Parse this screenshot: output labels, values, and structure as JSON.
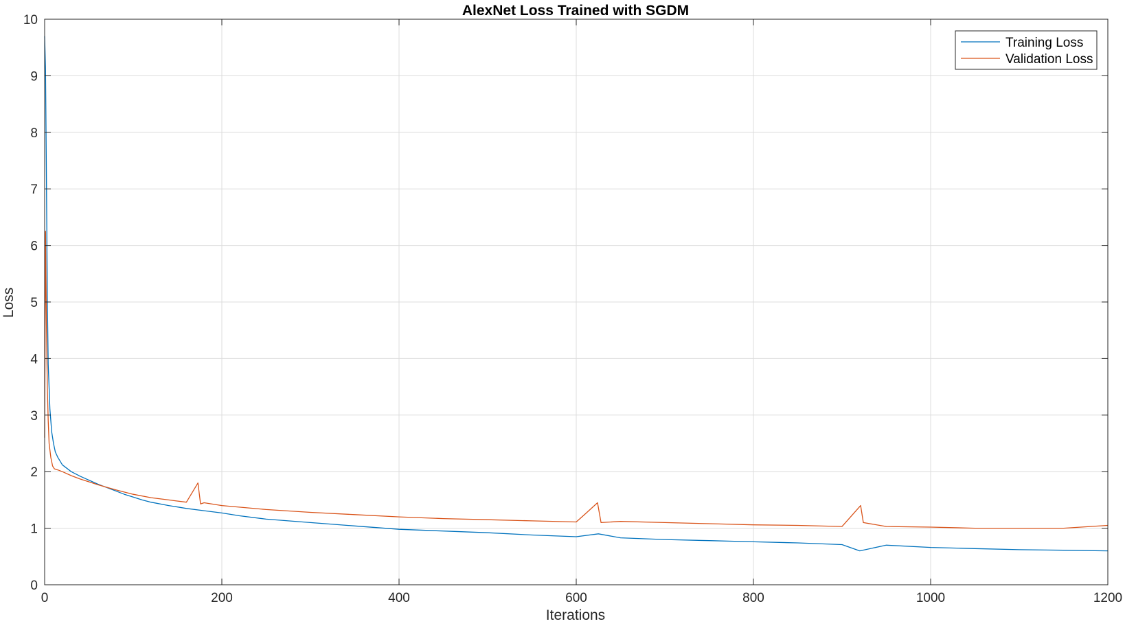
{
  "chart_data": {
    "type": "line",
    "title": "AlexNet Loss Trained with SGDM",
    "xlabel": "Iterations",
    "ylabel": "Loss",
    "xlim": [
      0,
      1200
    ],
    "ylim": [
      0,
      10
    ],
    "xticks": [
      "0",
      "200",
      "400",
      "600",
      "800",
      "1000",
      "1200"
    ],
    "yticks": [
      "0",
      "1",
      "2",
      "3",
      "4",
      "5",
      "6",
      "7",
      "8",
      "9",
      "10"
    ],
    "grid": true,
    "legend_position": "top-right",
    "series": [
      {
        "name": "Training Loss",
        "color": "#0072BD",
        "x": [
          0,
          1,
          2,
          3,
          4,
          6,
          8,
          10,
          12,
          15,
          20,
          30,
          40,
          50,
          60,
          70,
          80,
          90,
          100,
          110,
          120,
          140,
          160,
          180,
          200,
          220,
          250,
          300,
          350,
          400,
          450,
          500,
          550,
          600,
          625,
          650,
          700,
          750,
          800,
          850,
          900,
          920,
          950,
          1000,
          1050,
          1100,
          1150,
          1200
        ],
        "y": [
          9.7,
          9.1,
          7.2,
          5.1,
          3.9,
          3.1,
          2.7,
          2.5,
          2.35,
          2.25,
          2.12,
          2.0,
          1.92,
          1.85,
          1.78,
          1.72,
          1.66,
          1.6,
          1.55,
          1.5,
          1.46,
          1.4,
          1.35,
          1.31,
          1.27,
          1.22,
          1.16,
          1.1,
          1.04,
          0.98,
          0.95,
          0.92,
          0.88,
          0.85,
          0.9,
          0.83,
          0.8,
          0.78,
          0.76,
          0.74,
          0.71,
          0.6,
          0.7,
          0.66,
          0.64,
          0.62,
          0.61,
          0.6
        ]
      },
      {
        "name": "Validation Loss",
        "color": "#D95319",
        "x": [
          0,
          1,
          2,
          3,
          4,
          5,
          7,
          9,
          11,
          15,
          20,
          30,
          40,
          50,
          60,
          80,
          100,
          120,
          140,
          160,
          173,
          176,
          180,
          200,
          250,
          300,
          350,
          400,
          450,
          500,
          550,
          600,
          610,
          624,
          628,
          650,
          700,
          750,
          800,
          850,
          900,
          921,
          924,
          950,
          1000,
          1050,
          1100,
          1150,
          1200
        ],
        "y": [
          2.6,
          6.25,
          4.6,
          3.5,
          2.9,
          2.5,
          2.25,
          2.1,
          2.05,
          2.03,
          2.0,
          1.93,
          1.87,
          1.82,
          1.77,
          1.68,
          1.6,
          1.54,
          1.5,
          1.46,
          1.8,
          1.43,
          1.45,
          1.4,
          1.33,
          1.28,
          1.24,
          1.2,
          1.17,
          1.15,
          1.13,
          1.11,
          1.25,
          1.45,
          1.1,
          1.12,
          1.1,
          1.08,
          1.06,
          1.05,
          1.03,
          1.4,
          1.1,
          1.03,
          1.02,
          1.0,
          1.0,
          1.0,
          1.05
        ]
      }
    ]
  }
}
